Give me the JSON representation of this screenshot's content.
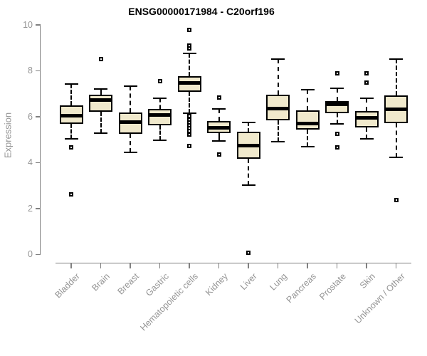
{
  "colors": {
    "background": "#FFFFFF",
    "box_fill": "#F0E9CC",
    "box_border": "#000000",
    "median": "#000000",
    "axis_line": "#808080",
    "tick_text": "#949494",
    "title_text": "#000000"
  },
  "chart_data": {
    "type": "boxplot",
    "title": "ENSG00000171984 - C20orf196",
    "xlabel": "",
    "ylabel": "Expression",
    "ylim": [
      0,
      10
    ],
    "yticks": [
      0,
      2,
      4,
      6,
      8,
      10
    ],
    "grid": false,
    "legend": null,
    "categories": [
      "Bladder",
      "Brain",
      "Breast",
      "Gastric",
      "Hematopoietic cells",
      "Kidney",
      "Liver",
      "Lung",
      "Pancreas",
      "Prostate",
      "Skin",
      "Unknown / Other"
    ],
    "series": [
      {
        "label": "Bladder",
        "whislo": 5.05,
        "q1": 5.68,
        "med": 6.05,
        "q3": 6.5,
        "whishi": 7.43,
        "outliers": [
          4.67,
          2.61
        ]
      },
      {
        "label": "Brain",
        "whislo": 5.29,
        "q1": 6.2,
        "med": 6.73,
        "q3": 6.95,
        "whishi": 7.21,
        "outliers": [
          8.52
        ]
      },
      {
        "label": "Breast",
        "whislo": 4.45,
        "q1": 5.25,
        "med": 5.78,
        "q3": 6.17,
        "whishi": 7.33,
        "outliers": []
      },
      {
        "label": "Gastric",
        "whislo": 4.98,
        "q1": 5.63,
        "med": 6.08,
        "q3": 6.33,
        "whishi": 6.8,
        "outliers": [
          7.55
        ]
      },
      {
        "label": "Hematopoietic cells",
        "whislo": 6.15,
        "q1": 7.07,
        "med": 7.47,
        "q3": 7.78,
        "whishi": 8.76,
        "outliers": [
          9.79,
          9.09,
          8.97,
          6.02,
          5.88,
          5.75,
          5.62,
          5.5,
          5.37,
          5.23,
          4.74
        ]
      },
      {
        "label": "Kidney",
        "whislo": 4.93,
        "q1": 5.27,
        "med": 5.52,
        "q3": 5.81,
        "whishi": 6.35,
        "outliers": [
          6.83,
          4.35
        ]
      },
      {
        "label": "Liver",
        "whislo": 3.02,
        "q1": 4.18,
        "med": 4.75,
        "q3": 5.35,
        "whishi": 5.76,
        "outliers": [
          0.06
        ]
      },
      {
        "label": "Lung",
        "whislo": 4.91,
        "q1": 5.85,
        "med": 6.36,
        "q3": 6.95,
        "whishi": 8.52,
        "outliers": []
      },
      {
        "label": "Pancreas",
        "whislo": 4.7,
        "q1": 5.43,
        "med": 5.7,
        "q3": 6.29,
        "whishi": 7.18,
        "outliers": []
      },
      {
        "label": "Prostate",
        "whislo": 5.7,
        "q1": 6.16,
        "med": 6.55,
        "q3": 6.67,
        "whishi": 7.23,
        "outliers": [
          7.88,
          5.26,
          4.67
        ]
      },
      {
        "label": "Skin",
        "whislo": 5.05,
        "q1": 5.52,
        "med": 5.96,
        "q3": 6.24,
        "whishi": 6.79,
        "outliers": [
          7.88,
          7.48
        ]
      },
      {
        "label": "Unknown / Other",
        "whislo": 4.23,
        "q1": 5.71,
        "med": 6.31,
        "q3": 6.92,
        "whishi": 8.52,
        "outliers": [
          2.37
        ]
      }
    ]
  }
}
